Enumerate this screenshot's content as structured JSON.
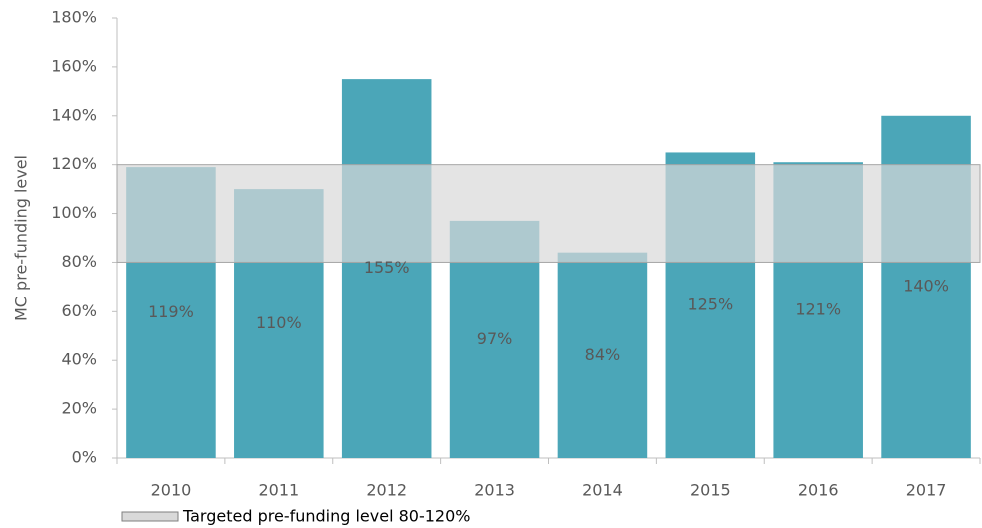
{
  "chart_data": {
    "type": "bar",
    "y_axis_label": "MC pre-funding level",
    "categories": [
      "2010",
      "2011",
      "2012",
      "2013",
      "2014",
      "2015",
      "2016",
      "2017"
    ],
    "values": [
      119,
      110,
      155,
      97,
      84,
      125,
      121,
      140
    ],
    "value_labels": [
      "119%",
      "110%",
      "155%",
      "97%",
      "84%",
      "125%",
      "121%",
      "140%"
    ],
    "color": "#4ba6b8",
    "ylim": [
      0,
      180
    ],
    "yticks": [
      {
        "value": 0,
        "label": "0%"
      },
      {
        "value": 20,
        "label": "20%"
      },
      {
        "value": 40,
        "label": "40%"
      },
      {
        "value": 60,
        "label": "60%"
      },
      {
        "value": 80,
        "label": "80%"
      },
      {
        "value": 100,
        "label": "100%"
      },
      {
        "value": 120,
        "label": "120%"
      },
      {
        "value": 140,
        "label": "140%"
      },
      {
        "value": 160,
        "label": "160%"
      },
      {
        "value": 180,
        "label": "180%"
      }
    ],
    "grid": false,
    "band": {
      "name": "Targeted pre-funding level 80-120%",
      "range": [
        80,
        120
      ],
      "color": "#d9d9d9"
    },
    "legend": "bottom-left"
  }
}
